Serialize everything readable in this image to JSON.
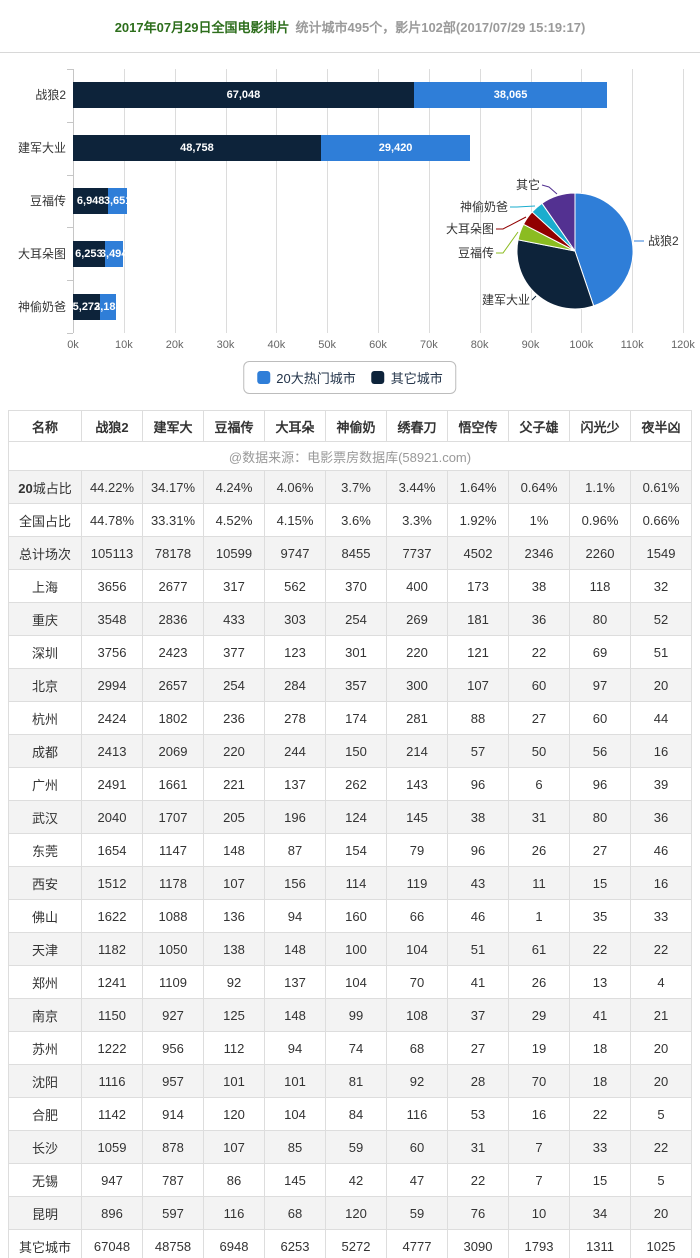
{
  "title": {
    "main": "2017年07月29日全国电影排片",
    "sub": "统计城市495个，影片102部(2017/07/29 15:19:17)"
  },
  "colors": {
    "hot20_blue": "#2f7ed8",
    "other_navy": "#0d233a",
    "pie_green": "#8bbc21",
    "pie_red": "#910000",
    "pie_teal": "#1aadce",
    "pie_purple": "#533191",
    "title_green": "#2d6e1c"
  },
  "legend": {
    "items": [
      {
        "label": "20大热门城市",
        "color": "#2f7ed8"
      },
      {
        "label": "其它城市",
        "color": "#0d233a"
      }
    ]
  },
  "chart_data": [
    {
      "type": "bar",
      "orientation": "horizontal",
      "stacked": true,
      "categories": [
        "战狼2",
        "建军大业",
        "豆福传",
        "大耳朵图",
        "神偷奶爸"
      ],
      "series": [
        {
          "name": "其它城市",
          "color": "#0d233a",
          "values": [
            67048,
            48758,
            6948,
            6253,
            5272
          ],
          "labels": [
            "67,048",
            "48,758",
            "6,948",
            "6,253",
            "5,272"
          ]
        },
        {
          "name": "20大热门城市",
          "color": "#2f7ed8",
          "values": [
            38065,
            29420,
            3651,
            3494,
            3183
          ],
          "labels": [
            "38,065",
            "29,420",
            "3,651",
            "3,494",
            "3,183"
          ]
        }
      ],
      "xlim": [
        0,
        120000
      ],
      "xticks": [
        "0k",
        "10k",
        "20k",
        "30k",
        "40k",
        "50k",
        "60k",
        "70k",
        "80k",
        "90k",
        "100k",
        "110k",
        "120k"
      ],
      "grid": true,
      "legend_position": "bottom"
    },
    {
      "type": "pie",
      "unit": "%",
      "labels": [
        "战狼2",
        "建军大业",
        "豆福传",
        "大耳朵图",
        "神偷奶爸",
        "其它"
      ],
      "values": [
        44.78,
        33.31,
        4.52,
        4.15,
        3.6,
        9.64
      ],
      "colors": [
        "#2f7ed8",
        "#0d233a",
        "#8bbc21",
        "#910000",
        "#1aadce",
        "#533191"
      ]
    }
  ],
  "table": {
    "columns": [
      "名称",
      "战狼2",
      "建军大",
      "豆福传",
      "大耳朵",
      "神偷奶",
      "绣春刀",
      "悟空传",
      "父子雄",
      "闪光少",
      "夜半凶"
    ],
    "source_note": "@数据来源：电影票房数据库(58921.com)",
    "rows": [
      {
        "label_bold": "20",
        "label": "城占比",
        "values": [
          "44.22%",
          "34.17%",
          "4.24%",
          "4.06%",
          "3.7%",
          "3.44%",
          "1.64%",
          "0.64%",
          "1.1%",
          "0.61%"
        ]
      },
      {
        "label": "全国占比",
        "values": [
          "44.78%",
          "33.31%",
          "4.52%",
          "4.15%",
          "3.6%",
          "3.3%",
          "1.92%",
          "1%",
          "0.96%",
          "0.66%"
        ]
      },
      {
        "label": "总计场次",
        "values": [
          "105113",
          "78178",
          "10599",
          "9747",
          "8455",
          "7737",
          "4502",
          "2346",
          "2260",
          "1549"
        ]
      },
      {
        "label": "上海",
        "values": [
          "3656",
          "2677",
          "317",
          "562",
          "370",
          "400",
          "173",
          "38",
          "118",
          "32"
        ]
      },
      {
        "label": "重庆",
        "values": [
          "3548",
          "2836",
          "433",
          "303",
          "254",
          "269",
          "181",
          "36",
          "80",
          "52"
        ]
      },
      {
        "label": "深圳",
        "values": [
          "3756",
          "2423",
          "377",
          "123",
          "301",
          "220",
          "121",
          "22",
          "69",
          "51"
        ]
      },
      {
        "label": "北京",
        "values": [
          "2994",
          "2657",
          "254",
          "284",
          "357",
          "300",
          "107",
          "60",
          "97",
          "20"
        ]
      },
      {
        "label": "杭州",
        "values": [
          "2424",
          "1802",
          "236",
          "278",
          "174",
          "281",
          "88",
          "27",
          "60",
          "44"
        ]
      },
      {
        "label": "成都",
        "values": [
          "2413",
          "2069",
          "220",
          "244",
          "150",
          "214",
          "57",
          "50",
          "56",
          "16"
        ]
      },
      {
        "label": "广州",
        "values": [
          "2491",
          "1661",
          "221",
          "137",
          "262",
          "143",
          "96",
          "6",
          "96",
          "39"
        ]
      },
      {
        "label": "武汉",
        "values": [
          "2040",
          "1707",
          "205",
          "196",
          "124",
          "145",
          "38",
          "31",
          "80",
          "36"
        ]
      },
      {
        "label": "东莞",
        "values": [
          "1654",
          "1147",
          "148",
          "87",
          "154",
          "79",
          "96",
          "26",
          "27",
          "46"
        ]
      },
      {
        "label": "西安",
        "values": [
          "1512",
          "1178",
          "107",
          "156",
          "114",
          "119",
          "43",
          "11",
          "15",
          "16"
        ]
      },
      {
        "label": "佛山",
        "values": [
          "1622",
          "1088",
          "136",
          "94",
          "160",
          "66",
          "46",
          "1",
          "35",
          "33"
        ]
      },
      {
        "label": "天津",
        "values": [
          "1182",
          "1050",
          "138",
          "148",
          "100",
          "104",
          "51",
          "61",
          "22",
          "22"
        ]
      },
      {
        "label": "郑州",
        "values": [
          "1241",
          "1109",
          "92",
          "137",
          "104",
          "70",
          "41",
          "26",
          "13",
          "4"
        ]
      },
      {
        "label": "南京",
        "values": [
          "1150",
          "927",
          "125",
          "148",
          "99",
          "108",
          "37",
          "29",
          "41",
          "21"
        ]
      },
      {
        "label": "苏州",
        "values": [
          "1222",
          "956",
          "112",
          "94",
          "74",
          "68",
          "27",
          "19",
          "18",
          "20"
        ]
      },
      {
        "label": "沈阳",
        "values": [
          "1116",
          "957",
          "101",
          "101",
          "81",
          "92",
          "28",
          "70",
          "18",
          "20"
        ]
      },
      {
        "label": "合肥",
        "values": [
          "1142",
          "914",
          "120",
          "104",
          "84",
          "116",
          "53",
          "16",
          "22",
          "5"
        ]
      },
      {
        "label": "长沙",
        "values": [
          "1059",
          "878",
          "107",
          "85",
          "59",
          "60",
          "31",
          "7",
          "33",
          "22"
        ]
      },
      {
        "label": "无锡",
        "values": [
          "947",
          "787",
          "86",
          "145",
          "42",
          "47",
          "22",
          "7",
          "15",
          "5"
        ]
      },
      {
        "label": "昆明",
        "values": [
          "896",
          "597",
          "116",
          "68",
          "120",
          "59",
          "76",
          "10",
          "34",
          "20"
        ]
      },
      {
        "label": "其它城市",
        "values": [
          "67048",
          "48758",
          "6948",
          "6253",
          "5272",
          "4777",
          "3090",
          "1793",
          "1311",
          "1025"
        ]
      }
    ]
  }
}
